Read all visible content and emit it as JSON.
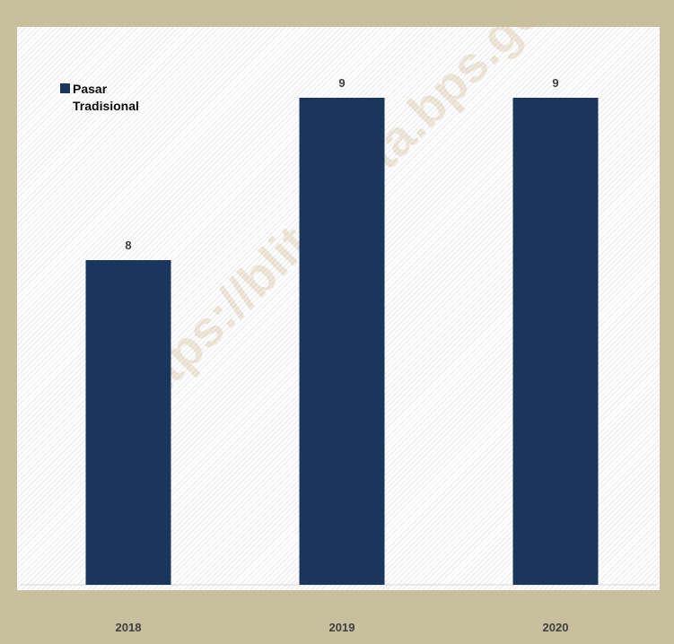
{
  "watermark": "https://blitarkota.bps.go.id",
  "colors": {
    "bar": "#1a365c",
    "frame": "#c8bf9c"
  },
  "chart_data": {
    "type": "bar",
    "categories": [
      "2018",
      "2019",
      "2020"
    ],
    "series": [
      {
        "name": "Pasar Tradisional",
        "values": [
          8,
          9,
          9
        ]
      }
    ],
    "legend": "top-left",
    "grid": false
  }
}
